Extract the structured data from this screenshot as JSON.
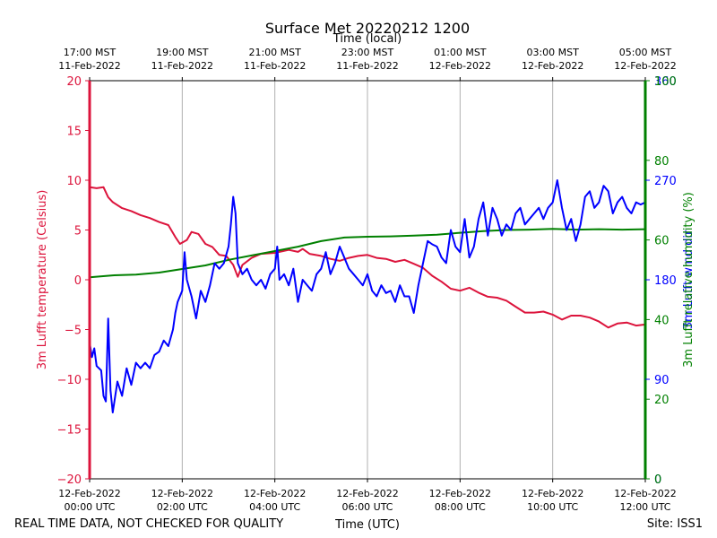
{
  "chart_data": {
    "type": "line",
    "title": "Surface Met 20220212 1200",
    "top_axis_label": "Time (local)",
    "xlabel": "Time (UTC)",
    "footer_left": "REAL TIME DATA, NOT CHECKED FOR QUALITY",
    "footer_right": "Site: ISS1",
    "x_range_hours_utc": [
      0,
      12
    ],
    "x_ticks_utc": [
      {
        "h": 0,
        "line1": "12-Feb-2022",
        "line2": "00:00 UTC"
      },
      {
        "h": 2,
        "line1": "12-Feb-2022",
        "line2": "02:00 UTC"
      },
      {
        "h": 4,
        "line1": "12-Feb-2022",
        "line2": "04:00 UTC"
      },
      {
        "h": 6,
        "line1": "12-Feb-2022",
        "line2": "06:00 UTC"
      },
      {
        "h": 8,
        "line1": "12-Feb-2022",
        "line2": "08:00 UTC"
      },
      {
        "h": 10,
        "line1": "12-Feb-2022",
        "line2": "10:00 UTC"
      },
      {
        "h": 12,
        "line1": "12-Feb-2022",
        "line2": "12:00 UTC"
      }
    ],
    "x_ticks_local": [
      {
        "h": 0,
        "line1": "17:00 MST",
        "line2": "11-Feb-2022"
      },
      {
        "h": 2,
        "line1": "19:00 MST",
        "line2": "11-Feb-2022"
      },
      {
        "h": 4,
        "line1": "21:00 MST",
        "line2": "11-Feb-2022"
      },
      {
        "h": 6,
        "line1": "23:00 MST",
        "line2": "11-Feb-2022"
      },
      {
        "h": 8,
        "line1": "01:00 MST",
        "line2": "12-Feb-2022"
      },
      {
        "h": 10,
        "line1": "03:00 MST",
        "line2": "12-Feb-2022"
      },
      {
        "h": 12,
        "line1": "05:00 MST",
        "line2": "12-Feb-2022"
      }
    ],
    "left_axis": {
      "label": "3m Lufft temperature (Celsius)",
      "color": "#dc143c",
      "ylim": [
        -20,
        20
      ],
      "ticks": [
        -20,
        -15,
        -10,
        -5,
        0,
        5,
        10,
        15,
        20
      ]
    },
    "right_axis_rh": {
      "label": "3m Lufft relative humidity (%)",
      "color": "#008000",
      "ylim": [
        0,
        100
      ],
      "ticks": [
        0,
        20,
        40,
        60,
        80,
        100
      ]
    },
    "right_axis_wind": {
      "label": "3m Lufft wind dir",
      "color": "#0000ff",
      "ylim": [
        0,
        360
      ],
      "ticks": [
        0,
        90,
        180,
        270,
        360
      ]
    },
    "series": [
      {
        "name": "3m Lufft temperature",
        "axis": "left",
        "color": "#dc143c",
        "points": [
          [
            0,
            9.3
          ],
          [
            0.15,
            9.2
          ],
          [
            0.3,
            9.3
          ],
          [
            0.4,
            8.3
          ],
          [
            0.5,
            7.8
          ],
          [
            0.7,
            7.2
          ],
          [
            0.9,
            6.9
          ],
          [
            1.1,
            6.5
          ],
          [
            1.3,
            6.2
          ],
          [
            1.5,
            5.8
          ],
          [
            1.7,
            5.5
          ],
          [
            1.85,
            4.3
          ],
          [
            1.95,
            3.6
          ],
          [
            2.1,
            4.0
          ],
          [
            2.2,
            4.8
          ],
          [
            2.35,
            4.6
          ],
          [
            2.5,
            3.6
          ],
          [
            2.65,
            3.3
          ],
          [
            2.8,
            2.5
          ],
          [
            2.95,
            2.4
          ],
          [
            3.1,
            1.5
          ],
          [
            3.2,
            0.3
          ],
          [
            3.3,
            1.5
          ],
          [
            3.5,
            2.2
          ],
          [
            3.7,
            2.6
          ],
          [
            4.0,
            2.7
          ],
          [
            4.3,
            3.0
          ],
          [
            4.5,
            2.8
          ],
          [
            4.6,
            3.1
          ],
          [
            4.75,
            2.6
          ],
          [
            5.0,
            2.4
          ],
          [
            5.2,
            2.1
          ],
          [
            5.4,
            1.9
          ],
          [
            5.6,
            2.2
          ],
          [
            5.8,
            2.4
          ],
          [
            6.0,
            2.5
          ],
          [
            6.2,
            2.2
          ],
          [
            6.4,
            2.1
          ],
          [
            6.6,
            1.8
          ],
          [
            6.8,
            2.0
          ],
          [
            7.0,
            1.6
          ],
          [
            7.2,
            1.2
          ],
          [
            7.4,
            0.4
          ],
          [
            7.6,
            -0.2
          ],
          [
            7.8,
            -0.9
          ],
          [
            8.0,
            -1.1
          ],
          [
            8.2,
            -0.8
          ],
          [
            8.4,
            -1.3
          ],
          [
            8.6,
            -1.7
          ],
          [
            8.8,
            -1.8
          ],
          [
            9.0,
            -2.1
          ],
          [
            9.2,
            -2.7
          ],
          [
            9.4,
            -3.3
          ],
          [
            9.6,
            -3.3
          ],
          [
            9.8,
            -3.2
          ],
          [
            10.0,
            -3.5
          ],
          [
            10.2,
            -4.0
          ],
          [
            10.4,
            -3.6
          ],
          [
            10.6,
            -3.6
          ],
          [
            10.8,
            -3.8
          ],
          [
            11.0,
            -4.2
          ],
          [
            11.2,
            -4.8
          ],
          [
            11.4,
            -4.4
          ],
          [
            11.6,
            -4.3
          ],
          [
            11.8,
            -4.6
          ],
          [
            12.0,
            -4.5
          ]
        ]
      },
      {
        "name": "3m Lufft relative humidity",
        "axis": "rh",
        "color": "#008000",
        "points": [
          [
            0,
            50.6
          ],
          [
            0.5,
            51.1
          ],
          [
            1.0,
            51.3
          ],
          [
            1.5,
            51.8
          ],
          [
            2.0,
            52.7
          ],
          [
            2.5,
            53.6
          ],
          [
            3.0,
            55.0
          ],
          [
            3.5,
            56.1
          ],
          [
            4.0,
            57.2
          ],
          [
            4.5,
            58.3
          ],
          [
            5.0,
            59.7
          ],
          [
            5.5,
            60.6
          ],
          [
            6.0,
            60.8
          ],
          [
            6.5,
            60.9
          ],
          [
            7.0,
            61.1
          ],
          [
            7.5,
            61.3
          ],
          [
            8.0,
            61.8
          ],
          [
            8.5,
            62.2
          ],
          [
            9.0,
            62.5
          ],
          [
            9.5,
            62.6
          ],
          [
            10.0,
            62.8
          ],
          [
            10.5,
            62.6
          ],
          [
            11.0,
            62.7
          ],
          [
            11.5,
            62.6
          ],
          [
            12.0,
            62.7
          ]
        ]
      },
      {
        "name": "3m Lufft wind dir",
        "axis": "wind",
        "color": "#0000ff",
        "points": [
          [
            0,
            123
          ],
          [
            0.05,
            110
          ],
          [
            0.1,
            118
          ],
          [
            0.15,
            102
          ],
          [
            0.25,
            98
          ],
          [
            0.3,
            75
          ],
          [
            0.35,
            70
          ],
          [
            0.4,
            145
          ],
          [
            0.45,
            80
          ],
          [
            0.5,
            60
          ],
          [
            0.6,
            88
          ],
          [
            0.7,
            75
          ],
          [
            0.8,
            100
          ],
          [
            0.9,
            85
          ],
          [
            1.0,
            105
          ],
          [
            1.1,
            100
          ],
          [
            1.2,
            105
          ],
          [
            1.3,
            100
          ],
          [
            1.4,
            112
          ],
          [
            1.5,
            115
          ],
          [
            1.6,
            125
          ],
          [
            1.7,
            120
          ],
          [
            1.8,
            135
          ],
          [
            1.85,
            150
          ],
          [
            1.9,
            160
          ],
          [
            2.0,
            170
          ],
          [
            2.05,
            205
          ],
          [
            2.1,
            180
          ],
          [
            2.2,
            165
          ],
          [
            2.3,
            145
          ],
          [
            2.4,
            170
          ],
          [
            2.5,
            160
          ],
          [
            2.6,
            175
          ],
          [
            2.7,
            195
          ],
          [
            2.8,
            190
          ],
          [
            2.9,
            195
          ],
          [
            3.0,
            210
          ],
          [
            3.05,
            230
          ],
          [
            3.1,
            255
          ],
          [
            3.15,
            240
          ],
          [
            3.2,
            195
          ],
          [
            3.3,
            185
          ],
          [
            3.4,
            190
          ],
          [
            3.5,
            180
          ],
          [
            3.6,
            175
          ],
          [
            3.7,
            180
          ],
          [
            3.8,
            172
          ],
          [
            3.9,
            185
          ],
          [
            4.0,
            190
          ],
          [
            4.05,
            210
          ],
          [
            4.1,
            180
          ],
          [
            4.2,
            185
          ],
          [
            4.3,
            175
          ],
          [
            4.4,
            190
          ],
          [
            4.5,
            160
          ],
          [
            4.6,
            180
          ],
          [
            4.7,
            175
          ],
          [
            4.8,
            170
          ],
          [
            4.9,
            185
          ],
          [
            5.0,
            190
          ],
          [
            5.1,
            205
          ],
          [
            5.2,
            185
          ],
          [
            5.3,
            195
          ],
          [
            5.4,
            210
          ],
          [
            5.5,
            200
          ],
          [
            5.6,
            190
          ],
          [
            5.7,
            185
          ],
          [
            5.8,
            180
          ],
          [
            5.9,
            175
          ],
          [
            6.0,
            185
          ],
          [
            6.1,
            170
          ],
          [
            6.2,
            165
          ],
          [
            6.3,
            175
          ],
          [
            6.4,
            168
          ],
          [
            6.5,
            170
          ],
          [
            6.6,
            160
          ],
          [
            6.7,
            175
          ],
          [
            6.8,
            165
          ],
          [
            6.9,
            165
          ],
          [
            7.0,
            150
          ],
          [
            7.1,
            175
          ],
          [
            7.2,
            195
          ],
          [
            7.3,
            215
          ],
          [
            7.4,
            212
          ],
          [
            7.5,
            210
          ],
          [
            7.6,
            200
          ],
          [
            7.7,
            195
          ],
          [
            7.8,
            225
          ],
          [
            7.9,
            210
          ],
          [
            8.0,
            205
          ],
          [
            8.1,
            235
          ],
          [
            8.2,
            200
          ],
          [
            8.3,
            210
          ],
          [
            8.4,
            235
          ],
          [
            8.5,
            250
          ],
          [
            8.6,
            220
          ],
          [
            8.7,
            245
          ],
          [
            8.8,
            235
          ],
          [
            8.9,
            220
          ],
          [
            9.0,
            230
          ],
          [
            9.1,
            225
          ],
          [
            9.2,
            240
          ],
          [
            9.3,
            245
          ],
          [
            9.4,
            230
          ],
          [
            9.5,
            235
          ],
          [
            9.6,
            240
          ],
          [
            9.7,
            245
          ],
          [
            9.8,
            235
          ],
          [
            9.9,
            245
          ],
          [
            10.0,
            250
          ],
          [
            10.1,
            270
          ],
          [
            10.2,
            245
          ],
          [
            10.3,
            225
          ],
          [
            10.4,
            235
          ],
          [
            10.5,
            215
          ],
          [
            10.6,
            230
          ],
          [
            10.7,
            255
          ],
          [
            10.8,
            260
          ],
          [
            10.9,
            245
          ],
          [
            11.0,
            250
          ],
          [
            11.1,
            265
          ],
          [
            11.2,
            260
          ],
          [
            11.3,
            240
          ],
          [
            11.4,
            250
          ],
          [
            11.5,
            255
          ],
          [
            11.6,
            245
          ],
          [
            11.7,
            240
          ],
          [
            11.8,
            250
          ],
          [
            11.9,
            248
          ],
          [
            12.0,
            250
          ]
        ]
      }
    ]
  }
}
